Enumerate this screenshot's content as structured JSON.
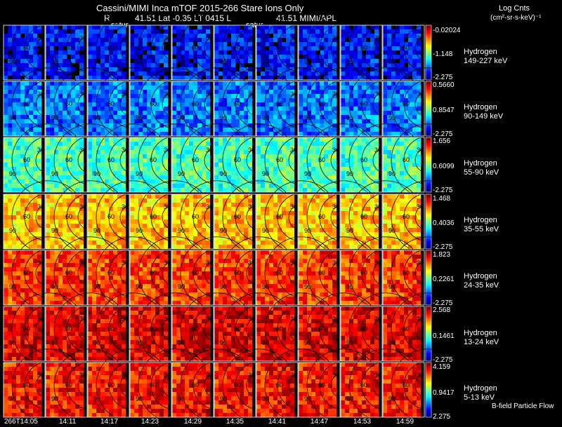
{
  "header": {
    "title": "Cassini/MIMI Inca mTOF  2015-266    Stare    Ions Only",
    "line2_r": "R",
    "line2_mid": "41.51 Lat -0.35 LT 0415 L",
    "line2_right": "41.51  MIMI/APL",
    "saturn_label_1": "satur",
    "saturn_label_2": "satur",
    "units_title": "Log Cnts",
    "units": "(cm²-sr-s-keV)⁻¹"
  },
  "rows": [
    {
      "species": "Hydrogen",
      "energy": "149-227 keV",
      "cb_max": "-0.02024",
      "cb_mid": "-1.148",
      "cb_min": "-2.275",
      "level": 0.12
    },
    {
      "species": "Hydrogen",
      "energy": "90-149 keV",
      "cb_max": "0.5660",
      "cb_mid": "0.8547",
      "cb_min": "-2.275",
      "level": 0.22
    },
    {
      "species": "Hydrogen",
      "energy": "55-90 keV",
      "cb_max": "1.656",
      "cb_mid": "0.6099",
      "cb_min": "-2.275",
      "level": 0.42
    },
    {
      "species": "Hydrogen",
      "energy": "35-55 keV",
      "cb_max": "1.468",
      "cb_mid": "0.4036",
      "cb_min": "-2.275",
      "level": 0.66
    },
    {
      "species": "Hydrogen",
      "energy": "24-35 keV",
      "cb_max": "1.823",
      "cb_mid": "0.2261",
      "cb_min": "-2.275",
      "level": 0.8
    },
    {
      "species": "Hydrogen",
      "energy": "13-24 keV",
      "cb_max": "2.568",
      "cb_mid": "0.1461",
      "cb_min": "-2.275",
      "level": 0.88
    },
    {
      "species": "Hydrogen",
      "energy": "5-13 keV",
      "cb_max": "4.159",
      "cb_mid": "0.9417",
      "cb_min": "2.275",
      "level": 0.84
    }
  ],
  "time_ticks": [
    "266T14:05",
    "14:11",
    "14:17",
    "14:23",
    "14:29",
    "14:35",
    "14:41",
    "14:47",
    "14:53",
    "14:59"
  ],
  "contour_labels": [
    "30",
    "60",
    "90"
  ],
  "footer_note": "B-field Particle Flow"
}
